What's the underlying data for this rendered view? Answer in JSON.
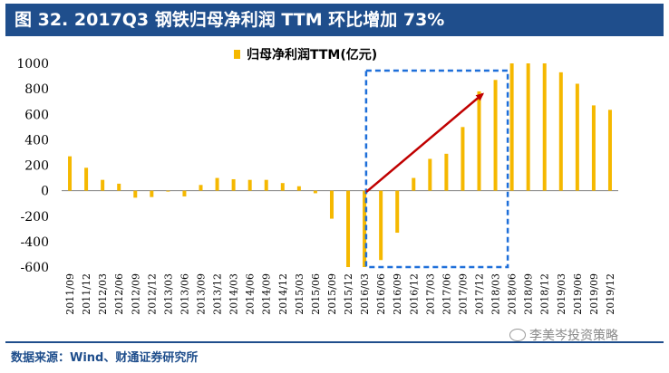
{
  "header": {
    "title": "图 32. 2017Q3 钢铁归母净利润 TTM 环比增加 73%"
  },
  "source": "数据来源：Wind、财通证券研究所",
  "watermark": "李美岑投资策略",
  "colors": {
    "header_bg": "#1f4e8c",
    "bar": "#f5b800",
    "highlight_box": "#1e6fd9",
    "trend_arrow": "#c00000",
    "source_text": "#1f4e8c"
  },
  "chart_data": {
    "type": "bar",
    "categories": [
      "2011/09",
      "2011/12",
      "2012/03",
      "2012/06",
      "2012/09",
      "2012/12",
      "2013/03",
      "2013/06",
      "2013/09",
      "2013/12",
      "2014/03",
      "2014/06",
      "2014/09",
      "2014/12",
      "2015/03",
      "2015/06",
      "2015/09",
      "2015/12",
      "2016/03",
      "2016/06",
      "2016/09",
      "2016/12",
      "2017/03",
      "2017/06",
      "2017/09",
      "2017/12",
      "2018/03",
      "2018/06",
      "2018/09",
      "2018/12",
      "2019/03",
      "2019/06",
      "2019/09",
      "2019/12"
    ],
    "series": [
      {
        "name": "归母净利润TTM(亿元)",
        "values": [
          270,
          180,
          85,
          55,
          -55,
          -50,
          -5,
          -45,
          45,
          100,
          90,
          85,
          85,
          60,
          35,
          -20,
          -220,
          -600,
          -600,
          -545,
          -330,
          100,
          250,
          290,
          500,
          780,
          870,
          1000,
          1000,
          1000,
          930,
          840,
          670,
          635
        ]
      }
    ],
    "ylim": [
      -600,
      1000
    ],
    "yticks": [
      -600,
      -400,
      -200,
      0,
      200,
      400,
      600,
      800,
      1000
    ],
    "legend_position": "top"
  }
}
